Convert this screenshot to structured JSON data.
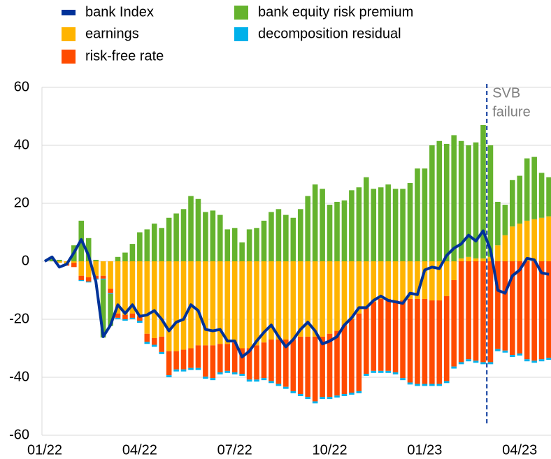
{
  "chart_data": {
    "type": "bar",
    "stacked": true,
    "categories": [
      "01/22",
      null,
      null,
      null,
      null,
      null,
      null,
      null,
      null,
      null,
      null,
      null,
      null,
      "04/22",
      null,
      null,
      null,
      null,
      null,
      null,
      null,
      null,
      null,
      null,
      null,
      null,
      "07/22",
      null,
      null,
      null,
      null,
      null,
      null,
      null,
      null,
      null,
      null,
      null,
      null,
      "10/22",
      null,
      null,
      null,
      null,
      null,
      null,
      null,
      null,
      null,
      null,
      null,
      null,
      "01/23",
      null,
      null,
      null,
      null,
      null,
      null,
      null,
      null,
      null,
      null,
      null,
      null,
      "04/23",
      null,
      null,
      null,
      null
    ],
    "series": [
      {
        "name": "bank Index",
        "type": "line",
        "color": "#003299",
        "values": [
          0,
          1.5,
          -2,
          -1,
          3,
          7.5,
          2,
          -7,
          -26,
          -22,
          -15,
          -18,
          -15,
          -19,
          -18.5,
          -17,
          -20,
          -24,
          -21,
          -20,
          -15,
          -17,
          -23.5,
          -24,
          -23.5,
          -27.5,
          -27.5,
          -33,
          -31,
          -27.5,
          -24.5,
          -22,
          -26,
          -29.5,
          -27,
          -23.5,
          -21,
          -24,
          -28.5,
          -27.5,
          -26,
          -22,
          -19.5,
          -16,
          -16,
          -13.5,
          -12,
          -13.5,
          -14,
          -14.5,
          -11,
          -11.5,
          -3,
          -2,
          -2.5,
          2,
          4.5,
          6,
          9,
          7,
          10.5,
          4,
          -10,
          -11,
          -5,
          -3,
          1,
          0.5,
          -4,
          -4.5
        ]
      },
      {
        "name": "bank equity risk premium",
        "type": "bar",
        "color": "#65b32e",
        "values": [
          0,
          1,
          0.5,
          0,
          5.5,
          14,
          8,
          0.5,
          -20,
          -11,
          1.5,
          3,
          6,
          10,
          11,
          13,
          11.5,
          15,
          16.5,
          18,
          22.5,
          21.5,
          17,
          17.5,
          16,
          11,
          11.5,
          6.5,
          11,
          11.5,
          14,
          17,
          18,
          16,
          15,
          18,
          22.5,
          26.5,
          25,
          19.5,
          20.5,
          21,
          24.5,
          25.5,
          29,
          25,
          25.5,
          26.5,
          25,
          25,
          27,
          32,
          32,
          40,
          41.5,
          40.5,
          43.5,
          40.5,
          38.5,
          40,
          46,
          38.5,
          15,
          10.5,
          16,
          16.5,
          21.5,
          21.5,
          15.5,
          13.5
        ]
      },
      {
        "name": "earnings",
        "type": "bar",
        "color": "#ffb400",
        "values": [
          0,
          0,
          -0.5,
          -1,
          -0.5,
          -5,
          -5.5,
          -5,
          -5,
          -9.5,
          -18,
          -18.5,
          -18,
          -19,
          -25,
          -26.5,
          -26,
          -31,
          -31,
          -30.5,
          -30,
          -29,
          -29,
          -29,
          -28.5,
          -28.5,
          -28,
          -30,
          -30,
          -29,
          -28,
          -27,
          -27,
          -27,
          -27,
          -26,
          -26,
          -26,
          -26,
          -25,
          -24,
          -22,
          -20,
          -18,
          -16,
          -14,
          -13,
          -13,
          -13.5,
          -13.5,
          -13,
          -13,
          -13,
          -13.5,
          -13.5,
          -12,
          -6.5,
          1,
          1.5,
          1,
          1,
          1.5,
          5.5,
          9,
          12,
          13,
          14,
          14.5,
          15,
          15.5
        ]
      },
      {
        "name": "risk-free rate",
        "type": "bar",
        "color": "#ff4b00",
        "values": [
          0,
          0,
          0,
          -0.5,
          -1.5,
          -1.5,
          -1.5,
          -1,
          -1,
          -1.5,
          -1.5,
          -1.5,
          -1.5,
          -1.5,
          -2.8,
          -2.3,
          -5.3,
          -8.3,
          -6.3,
          -6.8,
          -6.8,
          -7.8,
          -10.8,
          -11.3,
          -9.8,
          -9.3,
          -10.3,
          -8.8,
          -10.8,
          -11.8,
          -12.3,
          -14.3,
          -15.3,
          -16.3,
          -17.8,
          -19.8,
          -20.8,
          -22.3,
          -20.8,
          -21.8,
          -22.3,
          -23.8,
          -25.3,
          -26.8,
          -22.8,
          -23.8,
          -24.8,
          -24.8,
          -24.8,
          -26.8,
          -28.8,
          -29.3,
          -29.3,
          -28.8,
          -28.8,
          -29.3,
          -29.8,
          -34.8,
          -33.8,
          -34.3,
          -34.8,
          -34.8,
          -30.3,
          -30.8,
          -32.3,
          -31.8,
          -33.8,
          -34.3,
          -33.8,
          -33.3
        ]
      },
      {
        "name": "decomposition residual",
        "type": "bar",
        "color": "#00b1ea",
        "values": [
          0,
          0,
          0,
          0,
          0,
          -0.3,
          -0.3,
          -0.3,
          -0.3,
          -0.3,
          -0.5,
          -0.5,
          -0.5,
          -0.7,
          -0.7,
          -0.7,
          -0.7,
          -0.7,
          -0.7,
          -0.7,
          -0.7,
          -0.7,
          -0.7,
          -0.7,
          -0.7,
          -0.7,
          -0.7,
          -0.7,
          -0.7,
          -0.7,
          -0.7,
          -0.7,
          -0.7,
          -0.7,
          -0.7,
          -0.7,
          -0.7,
          -0.7,
          -0.7,
          -0.7,
          -0.7,
          -0.7,
          -0.7,
          -0.7,
          -0.7,
          -0.7,
          -0.7,
          -0.7,
          -0.7,
          -0.7,
          -0.7,
          -0.7,
          -0.7,
          -0.7,
          -0.7,
          -0.7,
          -0.7,
          -0.7,
          -0.7,
          -0.7,
          -0.7,
          -0.7,
          -0.7,
          -0.7,
          -0.7,
          -0.7,
          -0.7,
          -0.7,
          -0.7,
          -0.7
        ]
      }
    ],
    "ylim": [
      -60,
      60
    ],
    "yticks": [
      -60,
      -40,
      -20,
      0,
      20,
      40,
      60
    ],
    "grid": true,
    "annotations": [
      {
        "text": [
          "SVB",
          "failure"
        ],
        "x": 60.5,
        "color": "#003299"
      }
    ]
  }
}
